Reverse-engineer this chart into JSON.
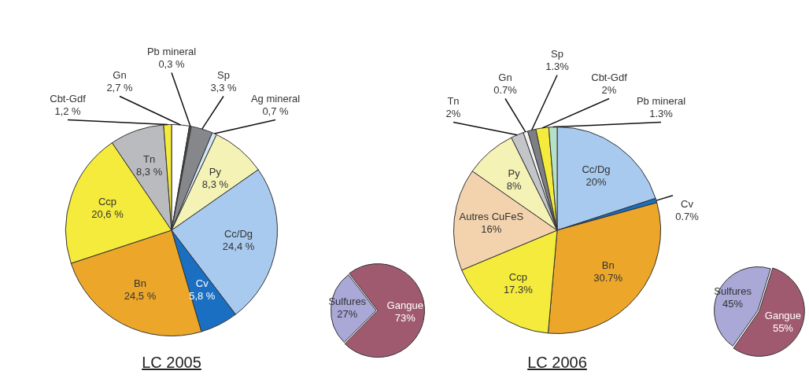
{
  "chart_data": [
    {
      "type": "pie",
      "title": "LC 2005",
      "categories": [
        "Gn",
        "Pb mineral",
        "Sp",
        "Ag mineral",
        "Py",
        "Cc/Dg",
        "Cv",
        "Bn",
        "Ccp",
        "Tn",
        "Cbt-Gdf"
      ],
      "values": [
        2.7,
        0.3,
        3.3,
        0.7,
        8.3,
        24.4,
        5.8,
        24.5,
        20.6,
        8.3,
        1.2
      ],
      "colors": [
        "#ffffff",
        "#4a4c50",
        "#85878b",
        "#d3e8f7",
        "#f5f2b6",
        "#a8caef",
        "#1a6fc2",
        "#eca72b",
        "#f4eb3c",
        "#b9bbbf",
        "#f4eb3c"
      ],
      "value_labels": [
        "2,7 %",
        "0,3 %",
        "3,3 %",
        "0,7 %",
        "8,3 %",
        "24,4 %",
        "5,8 %",
        "24,5 %",
        "20,6 %",
        "8,3 %",
        "1,2 %"
      ]
    },
    {
      "type": "pie",
      "categories": [
        "Sulfures",
        "Gangue"
      ],
      "values": [
        27,
        73
      ],
      "colors": [
        "#a9a8d6",
        "#a05a70"
      ],
      "value_labels": [
        "27%",
        "73%"
      ]
    },
    {
      "type": "pie",
      "title": "LC 2006",
      "categories": [
        "Cc/Dg",
        "Cv",
        "Bn",
        "Ccp",
        "Autres CuFeS",
        "Py",
        "Tn",
        "Gn",
        "Sp",
        "Cbt-Gdf",
        "Pb mineral"
      ],
      "values": [
        20,
        0.7,
        30.7,
        17.3,
        16,
        8,
        2,
        0.7,
        1.3,
        2,
        1.3
      ],
      "colors": [
        "#a8caef",
        "#1a6fc2",
        "#eca72b",
        "#f4eb3c",
        "#f3d3ae",
        "#f5f2b6",
        "#c3c5c9",
        "#f4f4f4",
        "#7d7f83",
        "#f4eb3c",
        "#b7e0c8"
      ],
      "value_labels": [
        "20%",
        "0.7%",
        "30.7%",
        "17.3%",
        "16%",
        "8%",
        "2%",
        "0.7%",
        "1.3%",
        "2%",
        "1.3%"
      ]
    },
    {
      "type": "pie",
      "categories": [
        "Sulfures",
        "Gangue"
      ],
      "values": [
        45,
        55
      ],
      "colors": [
        "#a9a8d6",
        "#a05a70"
      ],
      "value_labels": [
        "45%",
        "55%"
      ]
    }
  ]
}
